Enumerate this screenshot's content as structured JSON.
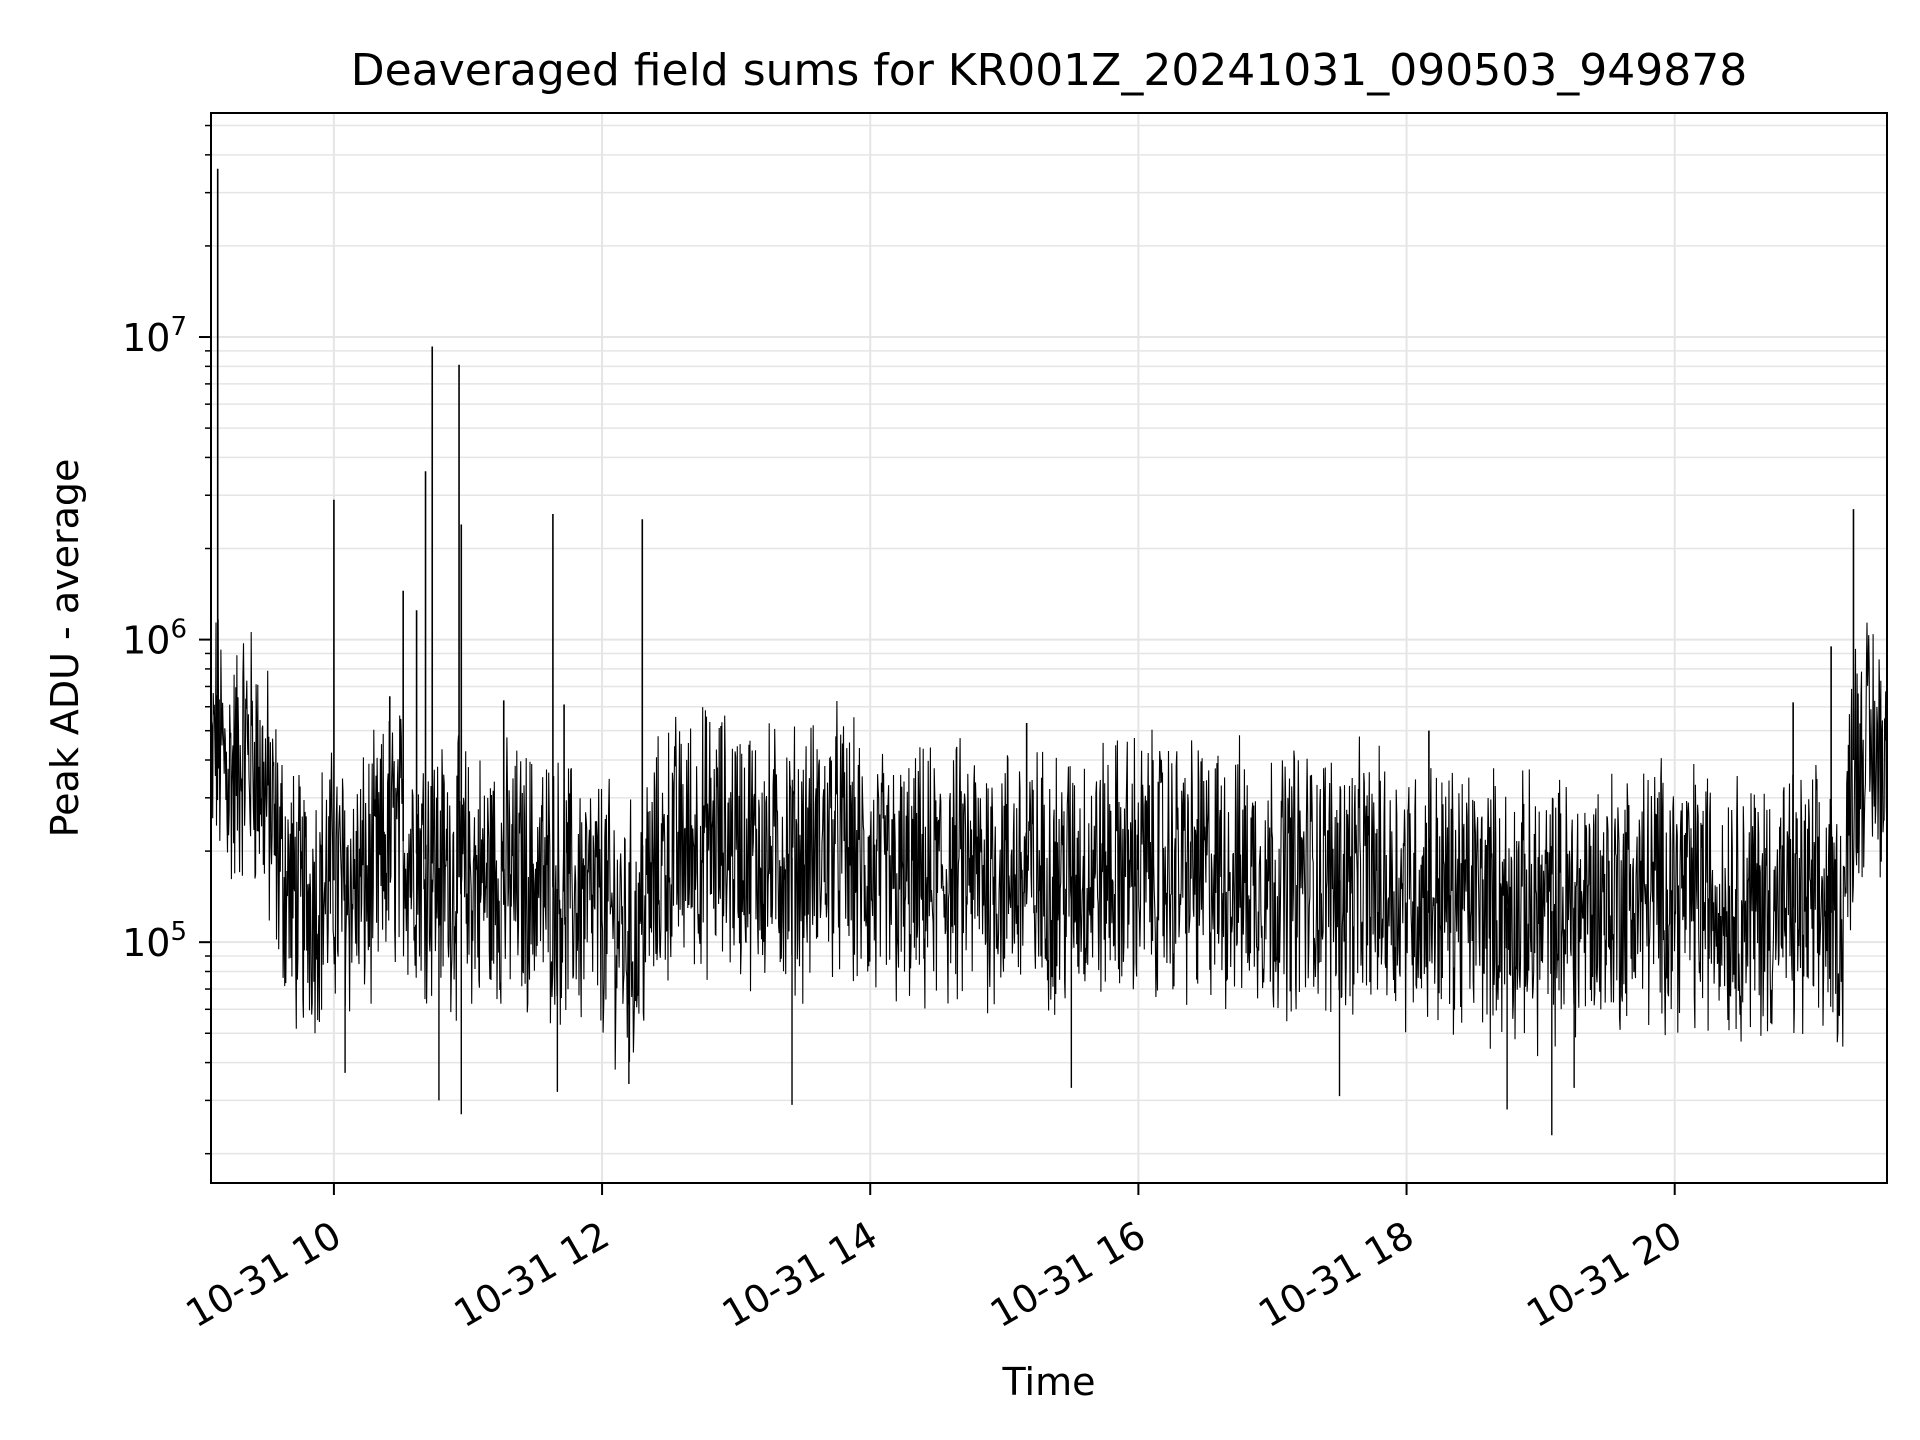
{
  "chart_data": {
    "type": "line",
    "title": "Deaveraged field sums for KR001Z_20241031_090503_949878",
    "xlabel": "Time",
    "ylabel": "Peak ADU - average",
    "y_scale": "log",
    "ylim": [
      16000,
      55000000
    ],
    "xlim": [
      "2024-10-31 09:05",
      "2024-10-31 21:35"
    ],
    "grid": true,
    "line_color": "#000000",
    "grid_color": "#e5e5e5",
    "x_ticks": [
      {
        "value": "2024-10-31 10:00",
        "label": "10-31 10"
      },
      {
        "value": "2024-10-31 12:00",
        "label": "10-31 12"
      },
      {
        "value": "2024-10-31 14:00",
        "label": "10-31 14"
      },
      {
        "value": "2024-10-31 16:00",
        "label": "10-31 16"
      },
      {
        "value": "2024-10-31 18:00",
        "label": "10-31 18"
      },
      {
        "value": "2024-10-31 20:00",
        "label": "10-31 20"
      }
    ],
    "y_ticks": [
      {
        "value": 100000,
        "base": "10",
        "exp": "5"
      },
      {
        "value": 1000000,
        "base": "10",
        "exp": "6"
      },
      {
        "value": 10000000,
        "base": "10",
        "exp": "7"
      }
    ],
    "series": [
      {
        "x": [
          "2024-10-31 09:05",
          "2024-10-31 09:07",
          "2024-10-31 09:10",
          "2024-10-31 09:15",
          "2024-10-31 09:20",
          "2024-10-31 09:25",
          "2024-10-31 09:30",
          "2024-10-31 09:35",
          "2024-10-31 09:40",
          "2024-10-31 09:45",
          "2024-10-31 09:50",
          "2024-10-31 09:55",
          "2024-10-31 10:00",
          "2024-10-31 10:10",
          "2024-10-31 10:20",
          "2024-10-31 10:25",
          "2024-10-31 10:30",
          "2024-10-31 10:35",
          "2024-10-31 10:40",
          "2024-10-31 10:45",
          "2024-10-31 10:50",
          "2024-10-31 11:00",
          "2024-10-31 11:10",
          "2024-10-31 11:20",
          "2024-10-31 11:30",
          "2024-10-31 11:40",
          "2024-10-31 11:50",
          "2024-10-31 12:00",
          "2024-10-31 12:10",
          "2024-10-31 12:15",
          "2024-10-31 12:20",
          "2024-10-31 12:30",
          "2024-10-31 12:45",
          "2024-10-31 13:00",
          "2024-10-31 13:15",
          "2024-10-31 13:30",
          "2024-10-31 13:45",
          "2024-10-31 14:00",
          "2024-10-31 14:15",
          "2024-10-31 14:30",
          "2024-10-31 14:45",
          "2024-10-31 15:00",
          "2024-10-31 15:15",
          "2024-10-31 15:30",
          "2024-10-31 15:45",
          "2024-10-31 16:00",
          "2024-10-31 16:15",
          "2024-10-31 16:30",
          "2024-10-31 16:45",
          "2024-10-31 17:00",
          "2024-10-31 17:15",
          "2024-10-31 17:30",
          "2024-10-31 17:45",
          "2024-10-31 18:00",
          "2024-10-31 18:15",
          "2024-10-31 18:30",
          "2024-10-31 18:45",
          "2024-10-31 19:00",
          "2024-10-31 19:15",
          "2024-10-31 19:30",
          "2024-10-31 19:45",
          "2024-10-31 20:00",
          "2024-10-31 20:15",
          "2024-10-31 20:30",
          "2024-10-31 20:45",
          "2024-10-31 21:00",
          "2024-10-31 21:10",
          "2024-10-31 21:15",
          "2024-10-31 21:20",
          "2024-10-31 21:25",
          "2024-10-31 21:30",
          "2024-10-31 21:35"
        ],
        "y": [
          300000,
          500000,
          400000,
          350000,
          450000,
          400000,
          300000,
          200000,
          150000,
          130000,
          140000,
          150000,
          160000,
          150000,
          170000,
          220000,
          220000,
          200000,
          190000,
          180000,
          170000,
          160000,
          160000,
          165000,
          160000,
          150000,
          140000,
          130000,
          110000,
          100000,
          140000,
          200000,
          220000,
          210000,
          190000,
          190000,
          220000,
          160000,
          150000,
          160000,
          170000,
          170000,
          160000,
          165000,
          170000,
          180000,
          175000,
          170000,
          165000,
          160000,
          165000,
          160000,
          155000,
          150000,
          145000,
          140000,
          130000,
          125000,
          130000,
          140000,
          145000,
          150000,
          140000,
          135000,
          130000,
          130000,
          125000,
          115000,
          400000,
          450000,
          420000,
          420000
        ]
      }
    ],
    "spikes": [
      {
        "x": "2024-10-31 09:08",
        "y": 36000000
      },
      {
        "x": "2024-10-31 10:00",
        "y": 2900000
      },
      {
        "x": "2024-10-31 10:25",
        "y": 650000
      },
      {
        "x": "2024-10-31 10:31",
        "y": 1450000
      },
      {
        "x": "2024-10-31 10:37",
        "y": 1250000
      },
      {
        "x": "2024-10-31 10:44",
        "y": 9300000
      },
      {
        "x": "2024-10-31 10:56",
        "y": 8100000
      },
      {
        "x": "2024-10-31 10:41",
        "y": 3600000
      },
      {
        "x": "2024-10-31 10:57",
        "y": 2400000
      },
      {
        "x": "2024-10-31 11:38",
        "y": 2600000
      },
      {
        "x": "2024-10-31 12:18",
        "y": 2500000
      },
      {
        "x": "2024-10-31 11:16",
        "y": 630000
      },
      {
        "x": "2024-10-31 11:43",
        "y": 610000
      },
      {
        "x": "2024-10-31 15:10",
        "y": 530000
      },
      {
        "x": "2024-10-31 18:10",
        "y": 500000
      },
      {
        "x": "2024-10-31 20:53",
        "y": 620000
      },
      {
        "x": "2024-10-31 21:20",
        "y": 2700000
      },
      {
        "x": "2024-10-31 21:10",
        "y": 950000
      }
    ],
    "dips": [
      {
        "x": "2024-10-31 10:05",
        "y": 37000
      },
      {
        "x": "2024-10-31 10:57",
        "y": 27000
      },
      {
        "x": "2024-10-31 10:47",
        "y": 30000
      },
      {
        "x": "2024-10-31 11:40",
        "y": 32000
      },
      {
        "x": "2024-10-31 12:12",
        "y": 34000
      },
      {
        "x": "2024-10-31 13:25",
        "y": 29000
      },
      {
        "x": "2024-10-31 15:30",
        "y": 33000
      },
      {
        "x": "2024-10-31 17:30",
        "y": 31000
      },
      {
        "x": "2024-10-31 18:45",
        "y": 28000
      },
      {
        "x": "2024-10-31 19:05",
        "y": 23000
      },
      {
        "x": "2024-10-31 19:15",
        "y": 33000
      }
    ]
  }
}
